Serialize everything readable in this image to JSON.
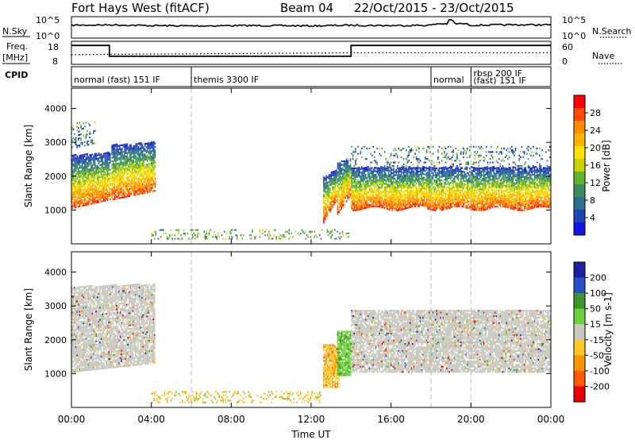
{
  "header": {
    "station": "Fort Hays West (fitACF)",
    "beam": "Beam 04",
    "date_range": "22/Oct/2015 - 23/Oct/2015"
  },
  "panels": {
    "nsky": {
      "left_label": "N.Sky",
      "right_label": "N.Search",
      "left_ticks": [
        "10^5",
        "10^0"
      ],
      "right_ticks": [
        "10^5",
        "10^0"
      ]
    },
    "freq": {
      "left_label_top": "Freq.",
      "left_label_unit": "[MHz]",
      "right_label": "Nave",
      "left_ticks": [
        "18",
        "8"
      ],
      "right_ticks": [
        "60",
        "0"
      ]
    },
    "cpid": {
      "label": "CPID",
      "segments": [
        {
          "label": "normal (fast) 151 IF",
          "start_h": 0,
          "end_h": 6
        },
        {
          "label": "themis 3300 IF",
          "start_h": 6,
          "end_h": 18
        },
        {
          "label": "normal",
          "start_h": 18,
          "end_h": 20
        },
        {
          "label": "rbsp 200 IF",
          "start_h": 20,
          "end_h": 24
        },
        {
          "label": "(fast) 151 IF",
          "start_h": 20,
          "end_h": 24
        }
      ]
    }
  },
  "colorbars": {
    "power": {
      "title": "Power [dB]",
      "ticks": [
        "28",
        "24",
        "20",
        "16",
        "12",
        "8",
        "4"
      ],
      "colors": [
        "#ff0000",
        "#ff4a00",
        "#ff8c00",
        "#ffb400",
        "#ffe000",
        "#c8d200",
        "#5fb430",
        "#3c8c60",
        "#2a6e8c",
        "#1e46b4",
        "#1414e6"
      ]
    },
    "velocity": {
      "title": "Velocity [m s-1]",
      "ticks": [
        "200",
        "100",
        "50",
        "15",
        "-15",
        "-50",
        "-100",
        "-200"
      ],
      "colors": [
        "#1e1ea0",
        "#2850c8",
        "#3c9628",
        "#6ed23c",
        "#c8c8c0",
        "#ffc828",
        "#ff9600",
        "#ff5a00",
        "#e60000"
      ]
    }
  },
  "chart_data": [
    {
      "type": "line",
      "name": "nsky-nsearch",
      "x_unit": "hours UT",
      "xlim": [
        0,
        24
      ],
      "series": [
        {
          "name": "N.Sky",
          "x": [
            0,
            2,
            4,
            6,
            8,
            10,
            12,
            14,
            16,
            18,
            19,
            20,
            22,
            24
          ],
          "y_fraction_of_axis": [
            0.62,
            0.64,
            0.6,
            0.58,
            0.6,
            0.6,
            0.58,
            0.62,
            0.6,
            0.62,
            0.9,
            0.62,
            0.64,
            0.64
          ]
        }
      ]
    },
    {
      "type": "line",
      "name": "frequency-nave",
      "x_unit": "hours UT",
      "xlim": [
        0,
        24
      ],
      "ylim_freq": [
        8,
        18
      ],
      "ylim_nave": [
        0,
        60
      ],
      "series": [
        {
          "name": "Freq.",
          "x": [
            0,
            1.9,
            1.9,
            14,
            14,
            24
          ],
          "y": [
            16.2,
            16.2,
            11.5,
            11.5,
            16.2,
            16.2
          ]
        },
        {
          "name": "Nave",
          "x": [
            0,
            1.9,
            14,
            24
          ],
          "y": [
            25,
            26,
            30,
            30
          ]
        }
      ]
    },
    {
      "type": "heatmap",
      "name": "power",
      "title": "Power [dB]",
      "xlabel": "",
      "ylabel": "Slant Range [km]",
      "xlim": [
        0,
        24
      ],
      "ylim": [
        0,
        4600
      ],
      "yticks": [
        1000,
        2000,
        3000,
        4000
      ],
      "regions": [
        {
          "x0": 0.0,
          "x1": 2.0,
          "y0": 1050,
          "y1": 2650,
          "slope": 0.45,
          "level": "high"
        },
        {
          "x0": 2.0,
          "x1": 4.2,
          "y0": 1300,
          "y1": 2950,
          "slope": 0.45,
          "level": "high"
        },
        {
          "x0": 0.0,
          "x1": 1.2,
          "y0": 2800,
          "y1": 3600,
          "slope": 0.3,
          "level": "low"
        },
        {
          "x0": 12.6,
          "x1": 13.3,
          "y0": 600,
          "y1": 2000,
          "slope": 1.2,
          "level": "high"
        },
        {
          "x0": 13.3,
          "x1": 14.0,
          "y0": 850,
          "y1": 2400,
          "slope": 1.0,
          "level": "high"
        },
        {
          "x0": 14.0,
          "x1": 24.0,
          "y0": 1050,
          "y1": 2300,
          "slope": 0.0,
          "level": "band"
        },
        {
          "x0": 14.0,
          "x1": 24.0,
          "y0": 2300,
          "y1": 2900,
          "slope": 0.0,
          "level": "sparse"
        },
        {
          "x0": 4.0,
          "x1": 14.0,
          "y0": 150,
          "y1": 450,
          "slope": 0.0,
          "level": "ground"
        }
      ]
    },
    {
      "type": "heatmap",
      "name": "velocity",
      "title": "Velocity [m s-1]",
      "xlabel": "Time UT",
      "ylabel": "Slant Range [km]",
      "xlim": [
        0,
        24
      ],
      "ylim": [
        0,
        4600
      ],
      "yticks": [
        1000,
        2000,
        3000,
        4000
      ],
      "xtick_labels": [
        "00:00",
        "04:00",
        "08:00",
        "12:00",
        "16:00",
        "20:00",
        "00:00"
      ],
      "regions": [
        {
          "x0": 0.0,
          "x1": 4.2,
          "y0": 1050,
          "y1": 3600,
          "slope": 0.45,
          "level": "near-zero"
        },
        {
          "x0": 12.6,
          "x1": 13.4,
          "y0": 600,
          "y1": 1900,
          "level": "negative"
        },
        {
          "x0": 13.3,
          "x1": 14.0,
          "y0": 950,
          "y1": 2300,
          "level": "positive"
        },
        {
          "x0": 14.0,
          "x1": 24.0,
          "y0": 1050,
          "y1": 2900,
          "level": "near-zero"
        },
        {
          "x0": 4.0,
          "x1": 12.5,
          "y0": 150,
          "y1": 500,
          "level": "mixed-low"
        }
      ]
    }
  ]
}
